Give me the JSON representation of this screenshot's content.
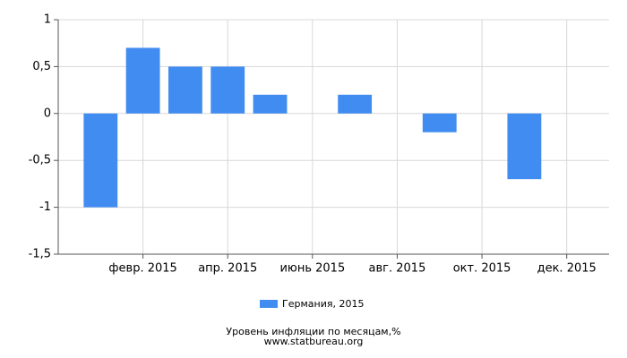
{
  "chart_data": {
    "type": "bar",
    "categories": [
      null,
      "февр. 2015",
      null,
      "апр. 2015",
      null,
      "июнь 2015",
      null,
      "авг. 2015",
      null,
      "окт. 2015",
      null,
      "дек. 2015"
    ],
    "series": [
      {
        "name": "Германия, 2015",
        "color": "#418cf0",
        "values": [
          -1.0,
          0.7,
          0.5,
          0.5,
          0.2,
          0,
          0.2,
          0,
          -0.2,
          0,
          -0.7,
          0
        ]
      }
    ],
    "ylim": [
      -1.5,
      1
    ],
    "yticks": [
      {
        "value": -1.5,
        "label": "-1,5"
      },
      -1,
      {
        "value": -0.5,
        "label": "-0,5"
      },
      0,
      {
        "value": 0.5,
        "label": "0,5"
      },
      1
    ],
    "grid": true,
    "xlabel": "Уровень инфляции по месяцам,%",
    "source": "www.statbureau.org"
  }
}
